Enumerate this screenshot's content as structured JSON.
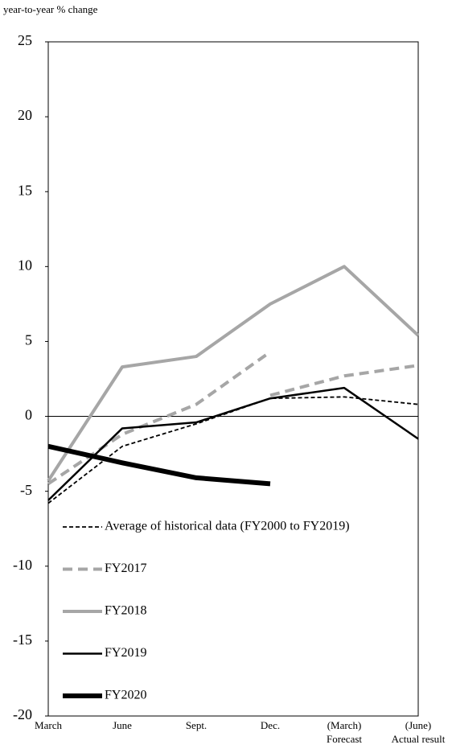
{
  "chart_data": {
    "type": "line",
    "y_label": "year-to-year % change",
    "categories": [
      "March",
      "June",
      "Sept.",
      "Dec.",
      "(March)",
      "(June)"
    ],
    "category_notes": [
      null,
      null,
      null,
      null,
      "Forecast",
      "Actual result"
    ],
    "series": [
      {
        "name": "Average of historical data (FY2000 to FY2019)",
        "color": "#000000",
        "style": "dashed",
        "width": 1.8,
        "values": [
          -5.8,
          -2.0,
          -0.5,
          1.2,
          1.3,
          0.8
        ]
      },
      {
        "name": "FY2017",
        "color": "#a6a6a6",
        "style": "dashed",
        "width": 4,
        "values": [
          -4.5,
          -1.2,
          0.8,
          4.3,
          null,
          null
        ],
        "forecast_values": [
          null,
          null,
          null,
          1.4,
          2.7,
          3.4
        ]
      },
      {
        "name": "FY2018",
        "color": "#a6a6a6",
        "style": "solid",
        "width": 4,
        "values": [
          -4.3,
          3.3,
          4.0,
          7.5,
          10.0,
          5.4
        ]
      },
      {
        "name": "FY2019",
        "color": "#000000",
        "style": "solid",
        "width": 2.5,
        "values": [
          -5.6,
          -0.8,
          -0.4,
          1.2,
          1.9,
          -1.5
        ]
      },
      {
        "name": "FY2020",
        "color": "#000000",
        "style": "solid",
        "width": 6,
        "values": [
          -2.0,
          -3.1,
          -4.1,
          -4.5,
          null,
          null
        ]
      }
    ],
    "ylim": [
      -20,
      25
    ],
    "yticks": [
      -20,
      -15,
      -10,
      -5,
      0,
      5,
      10,
      15,
      20,
      25
    ],
    "legend": "lower-left"
  }
}
